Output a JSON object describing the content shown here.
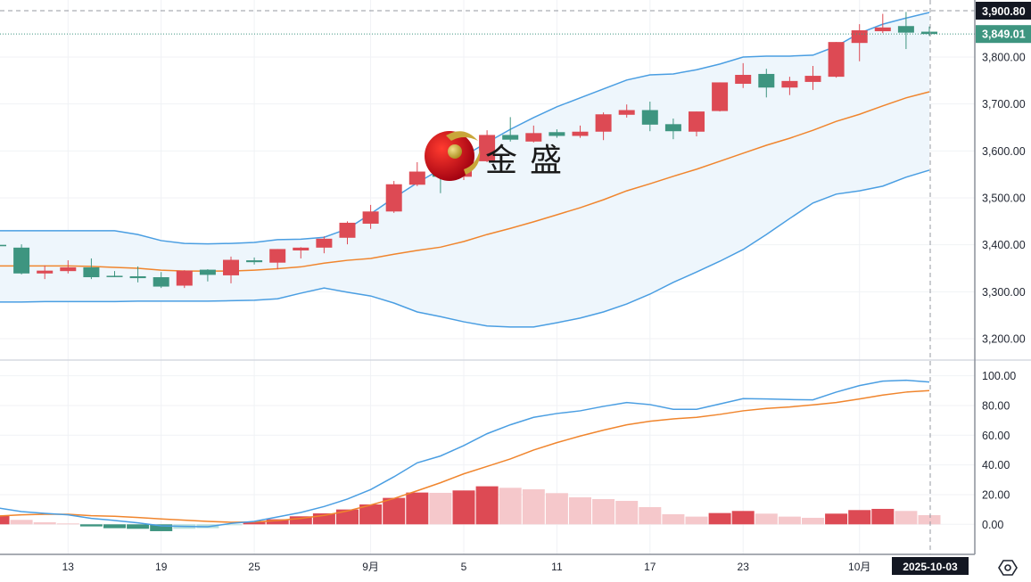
{
  "logo": {
    "text": "金盛"
  },
  "crosshair": {
    "price_label": "3,900.80",
    "date_label": "2025-10-03"
  },
  "last_price": {
    "label": "3,849.01",
    "value": 3849.01
  },
  "colors": {
    "up": "#dd4a54",
    "down": "#3e9580",
    "band_line": "#4a9ee2",
    "band_mid": "#f0852d",
    "band_fill": "#eef6fc",
    "hist_up_fade": "#f5c8cb",
    "hist_down_fade": "#b6e0dc",
    "last_price_bg": "#3e9580",
    "crosshair_bg": "#131722"
  },
  "settings_icon": "settings-hexagon-icon",
  "chart_data": {
    "type": "candlestick",
    "price_axis": {
      "ylim": [
        3170,
        3920
      ],
      "ticks": [
        3200,
        3300,
        3400,
        3500,
        3600,
        3700,
        3800
      ],
      "tick_labels": [
        "3,200.00",
        "3,300.00",
        "3,400.00",
        "3,500.00",
        "3,600.00",
        "3,700.00",
        "3,800.00"
      ]
    },
    "x_axis": {
      "ticks": [
        {
          "index": 3,
          "label": "13"
        },
        {
          "index": 7,
          "label": "19"
        },
        {
          "index": 11,
          "label": "25"
        },
        {
          "index": 16,
          "label": "9月"
        },
        {
          "index": 20,
          "label": "5"
        },
        {
          "index": 24,
          "label": "11"
        },
        {
          "index": 28,
          "label": "17"
        },
        {
          "index": 32,
          "label": "23"
        },
        {
          "index": 37,
          "label": "10月"
        }
      ]
    },
    "open": [
      3400,
      3394,
      3339,
      3344,
      3352,
      3334,
      3333,
      3331,
      3313,
      3347,
      3335,
      3367,
      3362,
      3388,
      3394,
      3415,
      3445,
      3471,
      3528,
      3558,
      3545,
      3578,
      3634,
      3620,
      3640,
      3632,
      3641,
      3677,
      3687,
      3657,
      3641,
      3685,
      3743,
      3764,
      3735,
      3747,
      3758,
      3830,
      3855,
      3866,
      3854
    ],
    "high": [
      3402,
      3401,
      3356,
      3367,
      3371,
      3344,
      3354,
      3342,
      3346,
      3348,
      3375,
      3373,
      3391,
      3395,
      3418,
      3450,
      3485,
      3536,
      3576,
      3565,
      3599,
      3644,
      3672,
      3654,
      3646,
      3654,
      3682,
      3699,
      3705,
      3669,
      3684,
      3746,
      3787,
      3775,
      3758,
      3781,
      3832,
      3870,
      3892,
      3896,
      3865
    ],
    "low": [
      3393,
      3337,
      3327,
      3339,
      3327,
      3331,
      3320,
      3308,
      3308,
      3322,
      3318,
      3358,
      3348,
      3371,
      3382,
      3401,
      3434,
      3468,
      3525,
      3510,
      3538,
      3576,
      3620,
      3618,
      3628,
      3628,
      3623,
      3671,
      3642,
      3625,
      3631,
      3684,
      3734,
      3714,
      3719,
      3730,
      3756,
      3791,
      3851,
      3817,
      3845
    ],
    "close": [
      3397,
      3339,
      3345,
      3352,
      3331,
      3333,
      3329,
      3311,
      3345,
      3336,
      3368,
      3363,
      3391,
      3394,
      3413,
      3447,
      3471,
      3529,
      3556,
      3545,
      3585,
      3634,
      3624,
      3638,
      3632,
      3641,
      3678,
      3687,
      3656,
      3642,
      3684,
      3746,
      3762,
      3735,
      3749,
      3760,
      3832,
      3857,
      3863,
      3852,
      3849.01
    ],
    "bollinger": {
      "upper": [
        3430,
        3430,
        3430,
        3430,
        3430,
        3430,
        3422,
        3409,
        3403,
        3402,
        3403,
        3405,
        3411,
        3412,
        3416,
        3434,
        3466,
        3500,
        3532,
        3561,
        3589,
        3618,
        3646,
        3671,
        3694,
        3713,
        3732,
        3751,
        3762,
        3764,
        3773,
        3785,
        3800,
        3802,
        3802,
        3804,
        3823,
        3851,
        3870,
        3883,
        3895
      ],
      "middle": [
        3355,
        3355,
        3355,
        3355,
        3354,
        3352,
        3350,
        3346,
        3344,
        3344,
        3344,
        3346,
        3349,
        3353,
        3361,
        3367,
        3371,
        3380,
        3388,
        3395,
        3407,
        3422,
        3435,
        3449,
        3464,
        3479,
        3496,
        3515,
        3530,
        3546,
        3561,
        3578,
        3595,
        3612,
        3627,
        3644,
        3663,
        3678,
        3696,
        3713,
        3726
      ],
      "lower": [
        3278,
        3278,
        3279,
        3279,
        3279,
        3279,
        3280,
        3280,
        3280,
        3280,
        3281,
        3282,
        3285,
        3297,
        3308,
        3299,
        3291,
        3276,
        3257,
        3247,
        3236,
        3227,
        3225,
        3225,
        3234,
        3244,
        3257,
        3274,
        3295,
        3320,
        3342,
        3365,
        3390,
        3422,
        3456,
        3489,
        3508,
        3515,
        3525,
        3544,
        3559
      ]
    },
    "indicator": {
      "ylim": [
        -6,
        104
      ],
      "ticks": [
        0,
        20,
        40,
        60,
        80,
        100
      ],
      "tick_labels": [
        "0.00",
        "20.00",
        "40.00",
        "60.00",
        "80.00",
        "100.00"
      ],
      "line_fast": [
        11,
        8.6,
        7.4,
        6.4,
        4,
        2.6,
        1,
        -1,
        -1.4,
        -1.6,
        0.6,
        2,
        5,
        8,
        12,
        17,
        23.4,
        32,
        41.4,
        46,
        53,
        61,
        67,
        72,
        74.6,
        76.4,
        79.4,
        82,
        80.6,
        77.4,
        77.4,
        81,
        84.6,
        84.4,
        84,
        83.8,
        89,
        93.4,
        96.4,
        97,
        95.8
      ],
      "line_slow": [
        5.6,
        6.4,
        6.8,
        6.8,
        5.8,
        5.4,
        4.6,
        3.6,
        2.8,
        2,
        1.4,
        1.6,
        2.6,
        4,
        6,
        9,
        13,
        17.4,
        22.6,
        28,
        34,
        39,
        44,
        50,
        55,
        59.4,
        63.4,
        67,
        69.4,
        71,
        72,
        74,
        76.4,
        78,
        79,
        80.4,
        82,
        84.4,
        87,
        89,
        90
      ],
      "histogram": [
        6,
        3,
        1.4,
        0.6,
        -1.4,
        -2.6,
        -3,
        -4.6,
        -3,
        -2.6,
        -0.4,
        1.6,
        3.4,
        5.4,
        7.4,
        10,
        13.4,
        17.8,
        21.4,
        21.2,
        22.8,
        25.6,
        24.6,
        23.6,
        21,
        18.2,
        17,
        15.8,
        11.6,
        6.8,
        5.2,
        7.6,
        9,
        7.2,
        5.2,
        4.4,
        7.2,
        9.6,
        10.4,
        9,
        6.2
      ]
    }
  }
}
